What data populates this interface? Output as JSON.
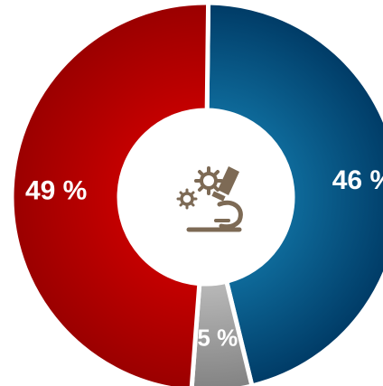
{
  "chart_data": {
    "type": "pie",
    "variant": "donut",
    "title": "",
    "slices": [
      {
        "value": 46,
        "label": "46 %",
        "color": "#003f6c"
      },
      {
        "value": 5,
        "label": "5 %",
        "color": "#8c8c8c"
      },
      {
        "value": 49,
        "label": "49 %",
        "color": "#a80000"
      }
    ],
    "center_icon": "microscope-gears-icon",
    "center_icon_color": "#7d6a55"
  }
}
